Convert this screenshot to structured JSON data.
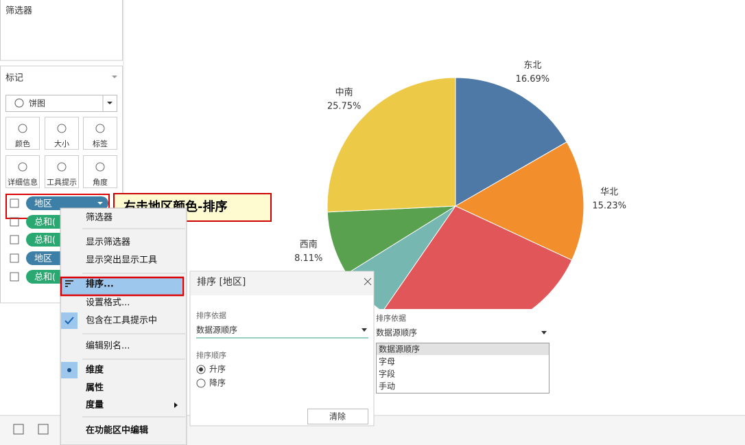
{
  "left_panel": {
    "filters_title": "筛选器",
    "marks_title": "标记",
    "mark_type": "饼图",
    "buttons": [
      "颜色",
      "大小",
      "标签",
      "详细信息",
      "工具提示",
      "角度"
    ],
    "pills": [
      "地区",
      "总和(",
      "总和(",
      "地区",
      "总和("
    ]
  },
  "callout": "右击地区颜色-排序",
  "context_menu": [
    "筛选器",
    "显示筛选器",
    "显示突出显示工具",
    "排序...",
    "设置格式...",
    "包含在工具提示中",
    "编辑别名...",
    "维度",
    "属性",
    "度量",
    "在功能区中编辑"
  ],
  "sort_dialog": {
    "title": "排序 [地区]",
    "sort_by_label": "排序依据",
    "sort_by_value": "数据源顺序",
    "order_label": "排序顺序",
    "options": [
      "升序",
      "降序"
    ],
    "button": "清除"
  },
  "sort_dropdown": {
    "label": "排序依据",
    "value": "数据源顺序",
    "options": [
      "数据源顺序",
      "字母",
      "字段",
      "手动"
    ]
  },
  "chart_data": {
    "type": "pie",
    "categories": [
      "东北",
      "华北",
      null,
      null,
      "西南",
      "中南"
    ],
    "values": [
      16.69,
      15.23,
      27.72,
      6.5,
      8.11,
      25.75
    ],
    "value_labels": [
      "16.69%",
      "15.23%",
      null,
      null,
      "8.11%",
      "25.75%"
    ],
    "colors": [
      "#4e79a7",
      "#f28e2b",
      "#e15759",
      "#76b7b2",
      "#59a14f",
      "#edc948"
    ]
  }
}
